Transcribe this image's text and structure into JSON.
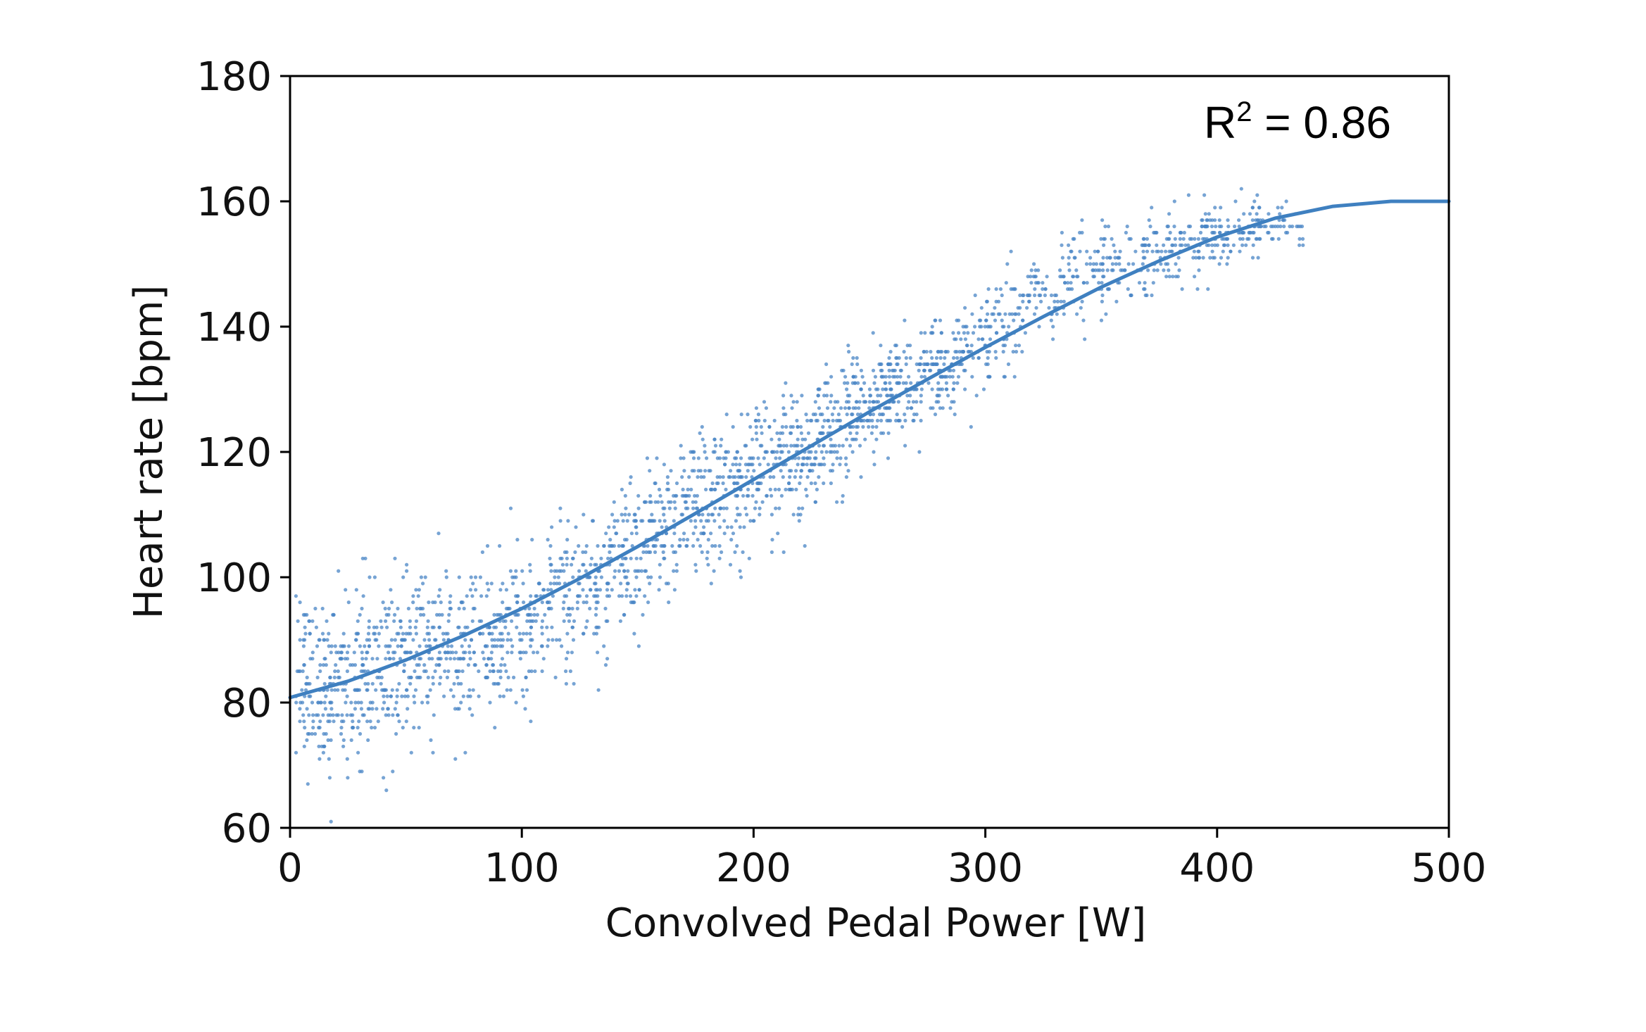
{
  "chart_data": {
    "type": "scatter",
    "title": "",
    "xlabel": "Convolved Pedal Power [W]",
    "ylabel": "Heart rate [bpm]",
    "xlim": [
      0,
      500
    ],
    "ylim": [
      60,
      180
    ],
    "xticks": [
      "0",
      "100",
      "200",
      "300",
      "400",
      "500"
    ],
    "yticks": [
      "60",
      "80",
      "100",
      "120",
      "140",
      "160",
      "180"
    ],
    "grid": false,
    "legend": "none",
    "annotation": {
      "base": "R",
      "exponent": "2",
      "rest": " = 0.86"
    },
    "colors": {
      "points": "#4a86c5",
      "fit": "#3f80c0",
      "axes": "#000000"
    },
    "fit_curve": {
      "x": [
        0,
        25,
        50,
        75,
        100,
        125,
        150,
        175,
        200,
        225,
        250,
        275,
        300,
        325,
        350,
        375,
        400,
        425,
        450,
        475,
        500
      ],
      "y": [
        80.8,
        83.4,
        86.8,
        90.7,
        95.0,
        99.8,
        104.9,
        110.2,
        115.6,
        121.0,
        126.4,
        131.6,
        136.7,
        141.6,
        146.3,
        150.5,
        154.3,
        157.3,
        159.2,
        160.0,
        160.0
      ]
    },
    "series": [
      {
        "cluster_centers": {
          "x": [
            10,
            25,
            40,
            55,
            70,
            85,
            100,
            115,
            130,
            145,
            160,
            175,
            190,
            205,
            220,
            235,
            250,
            265,
            280,
            295,
            310,
            325,
            340,
            355,
            370,
            385,
            400,
            415,
            430
          ],
          "y": [
            83,
            84,
            85,
            87,
            88,
            90,
            92,
            96,
            99,
            103,
            107,
            111,
            114,
            117,
            120,
            124,
            127,
            130,
            133,
            136,
            140,
            145,
            149,
            150,
            151,
            153,
            155,
            156,
            156
          ]
        },
        "y_spread": [
          12,
          12,
          12,
          11,
          11,
          11,
          11,
          11,
          11,
          10,
          10,
          10,
          10,
          9,
          9,
          9,
          8,
          8,
          7,
          7,
          7,
          7,
          6,
          6,
          6,
          5,
          5,
          4,
          4
        ],
        "density": [
          120,
          120,
          110,
          110,
          100,
          100,
          95,
          90,
          90,
          95,
          100,
          100,
          100,
          100,
          110,
          110,
          110,
          110,
          100,
          80,
          60,
          50,
          55,
          60,
          55,
          60,
          70,
          60,
          30
        ]
      }
    ]
  }
}
